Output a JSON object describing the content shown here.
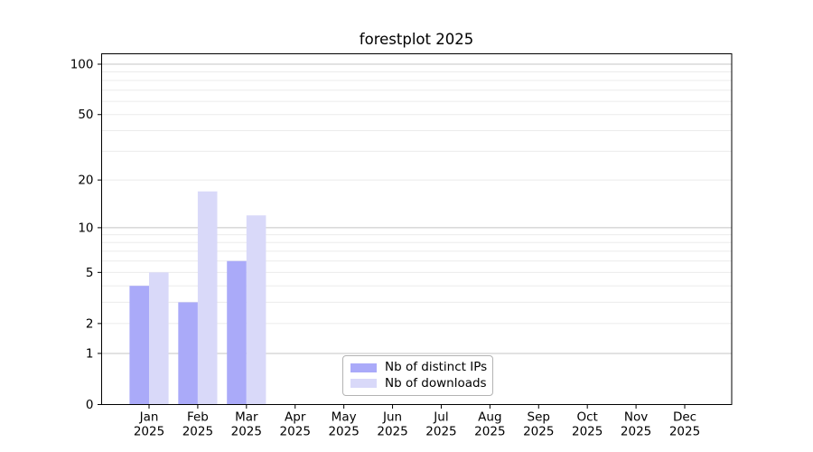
{
  "figure": {
    "background": "#ffffff"
  },
  "chart_data": {
    "type": "bar",
    "title": "forestplot 2025",
    "categories": [
      "Jan",
      "Feb",
      "Mar",
      "Apr",
      "May",
      "Jun",
      "Jul",
      "Aug",
      "Sep",
      "Oct",
      "Nov",
      "Dec"
    ],
    "x_year_label": "2025",
    "series": [
      {
        "name": "Nb of distinct IPs",
        "color": "#aaaaf9",
        "values": [
          4,
          3,
          6,
          0,
          0,
          0,
          0,
          0,
          0,
          0,
          0,
          0
        ]
      },
      {
        "name": "Nb of downloads",
        "color": "#d9d9f9",
        "values": [
          5,
          17,
          12,
          0,
          0,
          0,
          0,
          0,
          0,
          0,
          0,
          0
        ]
      }
    ],
    "yscale": "log1p",
    "yticks": [
      0,
      1,
      2,
      5,
      10,
      20,
      50,
      100
    ],
    "ylim": [
      0,
      117
    ],
    "grid": {
      "major_values": [
        1,
        10,
        100
      ],
      "minor_values": [
        2,
        3,
        4,
        5,
        6,
        7,
        8,
        9,
        20,
        30,
        40,
        50,
        60,
        70,
        80,
        90
      ]
    },
    "legend": {
      "position": "lower-center"
    },
    "colors": {
      "grid_major": "#c4c4c4",
      "grid_minor": "#ebebeb",
      "spine": "#000000",
      "text": "#000000"
    }
  }
}
